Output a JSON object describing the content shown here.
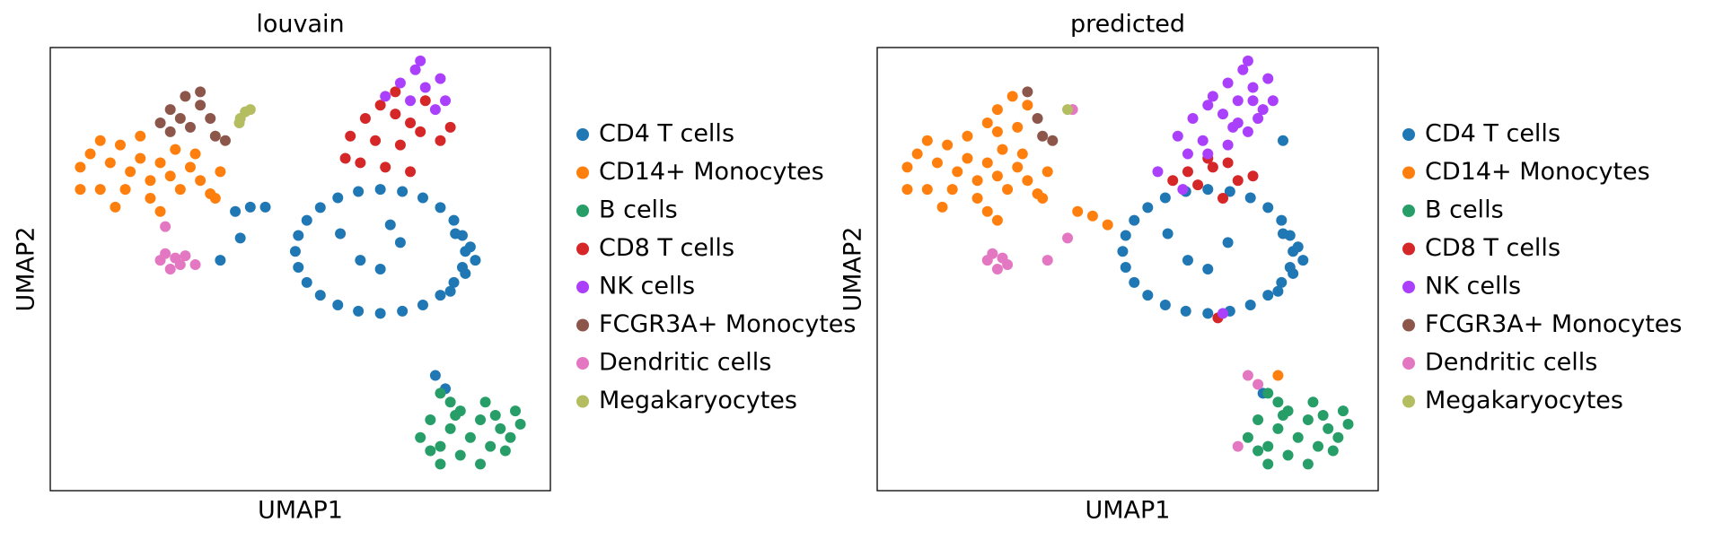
{
  "chart_data": [
    {
      "type": "scatter",
      "title": "louvain",
      "xlabel": "UMAP1",
      "ylabel": "UMAP2",
      "xlim": [
        0,
        100
      ],
      "ylim": [
        0,
        100
      ],
      "series": [
        {
          "name": "CD4 T cells",
          "color": "#1f77b4",
          "x": [
            83,
            82.4,
            80.7,
            78,
            74.5,
            70.4,
            66,
            61.6,
            57.5,
            54,
            51.3,
            49.6,
            49,
            49.6,
            51.3,
            54,
            57.5,
            61.6,
            66,
            70.4,
            74.5,
            78,
            80.7,
            82.4,
            84,
            83,
            80,
            85,
            81,
            62,
            66,
            70,
            58,
            68,
            37,
            40,
            43,
            38,
            34,
            77,
            79
          ],
          "y": [
            54,
            57.6,
            61,
            63.9,
            66.1,
            67.5,
            68,
            67.5,
            66.1,
            63.9,
            61,
            57.6,
            54,
            50.4,
            47,
            44.1,
            41.9,
            40.5,
            40,
            40.5,
            41.9,
            44.1,
            47,
            50.4,
            55,
            49,
            45,
            52,
            58,
            52,
            50,
            56,
            58,
            60,
            63,
            64,
            64,
            57,
            52,
            26,
            23
          ]
        },
        {
          "name": "CD14+ Monocytes",
          "color": "#ff7f0e",
          "x": [
            6,
            8,
            10,
            12,
            14,
            16,
            18,
            20,
            22,
            24,
            26,
            28,
            30,
            32,
            34,
            20,
            15,
            10,
            6,
            25,
            29,
            13,
            22,
            33,
            18
          ],
          "y": [
            73,
            76,
            79,
            74,
            78,
            72,
            75,
            70,
            74,
            71,
            68,
            73,
            70,
            67,
            72,
            66,
            68,
            68,
            68,
            77,
            76,
            64,
            63,
            66,
            80
          ]
        },
        {
          "name": "B cells",
          "color": "#279e68",
          "x": [
            74,
            76,
            78,
            80,
            82,
            84,
            86,
            88,
            90,
            92,
            94,
            87,
            82,
            78,
            86,
            91,
            80,
            93,
            76,
            89,
            81,
            78
          ],
          "y": [
            12,
            16,
            10,
            14,
            18,
            12,
            16,
            10,
            14,
            12,
            15,
            20,
            8,
            6,
            6,
            9,
            20,
            18,
            9,
            17,
            17,
            22
          ]
        },
        {
          "name": "CD8 T cells",
          "color": "#d62728",
          "x": [
            60,
            63,
            66,
            69,
            72,
            65,
            70,
            74,
            62,
            67,
            72,
            75,
            78,
            80,
            59,
            69
          ],
          "y": [
            80,
            84,
            87,
            85,
            83,
            79,
            78,
            81,
            74,
            73,
            72,
            88,
            79,
            82,
            75,
            90
          ]
        },
        {
          "name": "NK cells",
          "color": "#aa40fc",
          "x": [
            67,
            70,
            73,
            75,
            72,
            77,
            78,
            74,
            79
          ],
          "y": [
            89,
            92,
            95,
            91,
            88,
            86,
            93,
            97,
            88
          ]
        },
        {
          "name": "FCGR3A+ Monocytes",
          "color": "#8c564b",
          "x": [
            24,
            27,
            30,
            32,
            28,
            24,
            35,
            22,
            30,
            26,
            33
          ],
          "y": [
            86,
            89,
            87,
            84,
            82,
            81,
            79,
            83,
            90,
            84,
            80
          ]
        },
        {
          "name": "Dendritic cells",
          "color": "#e377c2",
          "x": [
            22,
            24,
            26,
            27,
            23,
            25,
            29,
            23
          ],
          "y": [
            52,
            50,
            51,
            53,
            53.5,
            52.5,
            51,
            59.6
          ]
        },
        {
          "name": "Megakaryocytes",
          "color": "#b5bd61",
          "x": [
            38,
            39,
            40,
            37.8
          ],
          "y": [
            84,
            85.5,
            86,
            83
          ]
        }
      ]
    },
    {
      "type": "scatter",
      "title": "predicted",
      "xlabel": "UMAP1",
      "ylabel": "UMAP2",
      "xlim": [
        0,
        100
      ],
      "ylim": [
        0,
        100
      ],
      "series": [
        {
          "name": "CD4 T cells",
          "color": "#1f77b4",
          "x": [
            83,
            82.4,
            80.7,
            78,
            74.5,
            70.4,
            66,
            61.6,
            57.5,
            54,
            51.3,
            49.6,
            49,
            49.6,
            51.3,
            54,
            57.5,
            61.6,
            66,
            70.4,
            74.5,
            78,
            80.7,
            82.4,
            84,
            83,
            80,
            85,
            81,
            62,
            66,
            70,
            58,
            77,
            81
          ],
          "y": [
            54,
            57.6,
            61,
            63.9,
            66.1,
            67.5,
            68,
            67.5,
            66.1,
            63.9,
            61,
            57.6,
            54,
            50.4,
            47,
            44.1,
            41.9,
            40.5,
            40,
            40.5,
            41.9,
            44.1,
            47,
            50.4,
            55,
            49,
            45,
            52,
            58,
            52,
            50,
            56,
            58,
            22,
            79
          ]
        },
        {
          "name": "CD14+ Monocytes",
          "color": "#ff7f0e",
          "x": [
            6,
            8,
            10,
            12,
            14,
            16,
            18,
            20,
            22,
            24,
            26,
            28,
            30,
            32,
            34,
            20,
            15,
            10,
            6,
            25,
            29,
            13,
            22,
            33,
            18,
            24,
            27,
            30,
            28,
            24,
            22,
            40,
            43,
            46,
            80,
            24
          ],
          "y": [
            73,
            76,
            79,
            74,
            78,
            72,
            75,
            70,
            74,
            71,
            68,
            73,
            70,
            67,
            72,
            66,
            68,
            68,
            68,
            77,
            76,
            64,
            63,
            66,
            80,
            86,
            89,
            87,
            82,
            81,
            83,
            63,
            62,
            60,
            26,
            61
          ]
        },
        {
          "name": "B cells",
          "color": "#279e68",
          "x": [
            74,
            76,
            78,
            80,
            82,
            84,
            86,
            88,
            90,
            92,
            94,
            87,
            82,
            78,
            86,
            91,
            80,
            93,
            76,
            89,
            81,
            78
          ],
          "y": [
            12,
            16,
            10,
            14,
            18,
            12,
            16,
            10,
            14,
            12,
            15,
            20,
            8,
            6,
            6,
            9,
            20,
            18,
            9,
            17,
            17,
            22
          ]
        },
        {
          "name": "CD8 T cells",
          "color": "#d62728",
          "x": [
            62,
            67,
            72,
            59,
            64,
            75,
            69,
            68,
            66,
            70
          ],
          "y": [
            72,
            73,
            70,
            70,
            69,
            71,
            66,
            39,
            75,
            74
          ]
        },
        {
          "name": "NK cells",
          "color": "#aa40fc",
          "x": [
            60,
            63,
            66,
            69,
            72,
            65,
            70,
            74,
            67,
            70,
            73,
            75,
            72,
            77,
            78,
            74,
            79,
            75,
            66,
            62,
            56,
            69,
            61,
            71,
            76
          ],
          "y": [
            80,
            84,
            87,
            85,
            83,
            79,
            78,
            81,
            89,
            92,
            95,
            91,
            88,
            86,
            93,
            97,
            88,
            88,
            76,
            76,
            72,
            40,
            68,
            82,
            84
          ]
        },
        {
          "name": "FCGR3A+ Monocytes",
          "color": "#8c564b",
          "x": [
            30,
            32,
            35,
            33
          ],
          "y": [
            90,
            84,
            79,
            80
          ]
        },
        {
          "name": "Dendritic cells",
          "color": "#e377c2",
          "x": [
            22,
            24,
            26,
            23,
            25,
            34,
            38,
            74,
            72,
            76,
            39
          ],
          "y": [
            52,
            50,
            51,
            53.5,
            52.5,
            52,
            57,
            26,
            10,
            24,
            86
          ]
        },
        {
          "name": "Megakaryocytes",
          "color": "#b5bd61",
          "x": [
            38
          ],
          "y": [
            86
          ]
        }
      ]
    }
  ]
}
